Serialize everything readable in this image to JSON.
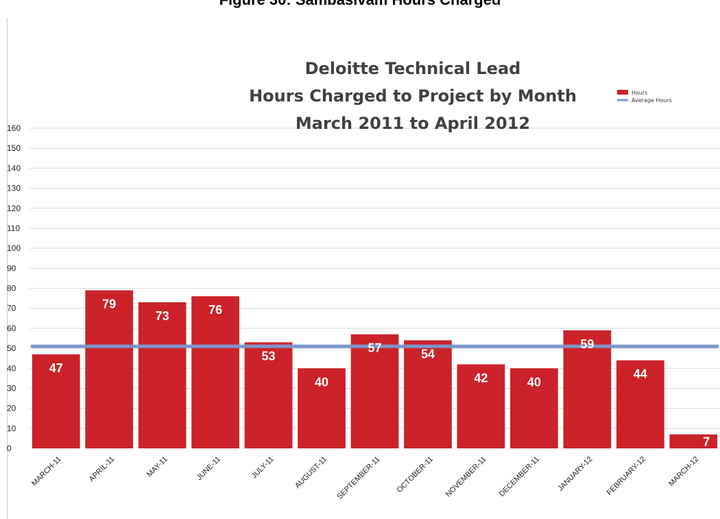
{
  "page": {
    "title": "Figure 30: Sambasivam Hours Charged"
  },
  "chart_data": {
    "type": "bar",
    "title_lines": [
      "Deloitte Technical Lead",
      "Hours Charged to Project by Month",
      "March 2011 to April 2012"
    ],
    "xlabel": "",
    "ylabel": "",
    "categories": [
      "MARCH-11",
      "APRIL-11",
      "MAY-11",
      "JUNE-11",
      "JULY-11",
      "AUGUST-11",
      "SEPTEMBER-11",
      "OCTOBER-11",
      "NOVEMBER-11",
      "DECEMBER-11",
      "JANUARY-12",
      "FEBRUARY-12",
      "MARCH-12"
    ],
    "series": [
      {
        "name": "Hours",
        "type": "bar",
        "color": "#cc2229",
        "values": [
          47,
          79,
          73,
          76,
          53,
          40,
          57,
          54,
          42,
          40,
          59,
          44,
          7
        ]
      },
      {
        "name": "Average Hours",
        "type": "line",
        "color": "#7b96cc",
        "values": [
          51,
          51,
          51,
          51,
          51,
          51,
          51,
          51,
          51,
          51,
          51,
          51,
          51
        ]
      }
    ],
    "ylim": [
      0,
      160
    ],
    "yticks": [
      0,
      10,
      20,
      30,
      40,
      50,
      60,
      70,
      80,
      90,
      100,
      110,
      120,
      130,
      140,
      150,
      160
    ],
    "grid": true,
    "legend_position": "top-right",
    "data_labels": true
  }
}
